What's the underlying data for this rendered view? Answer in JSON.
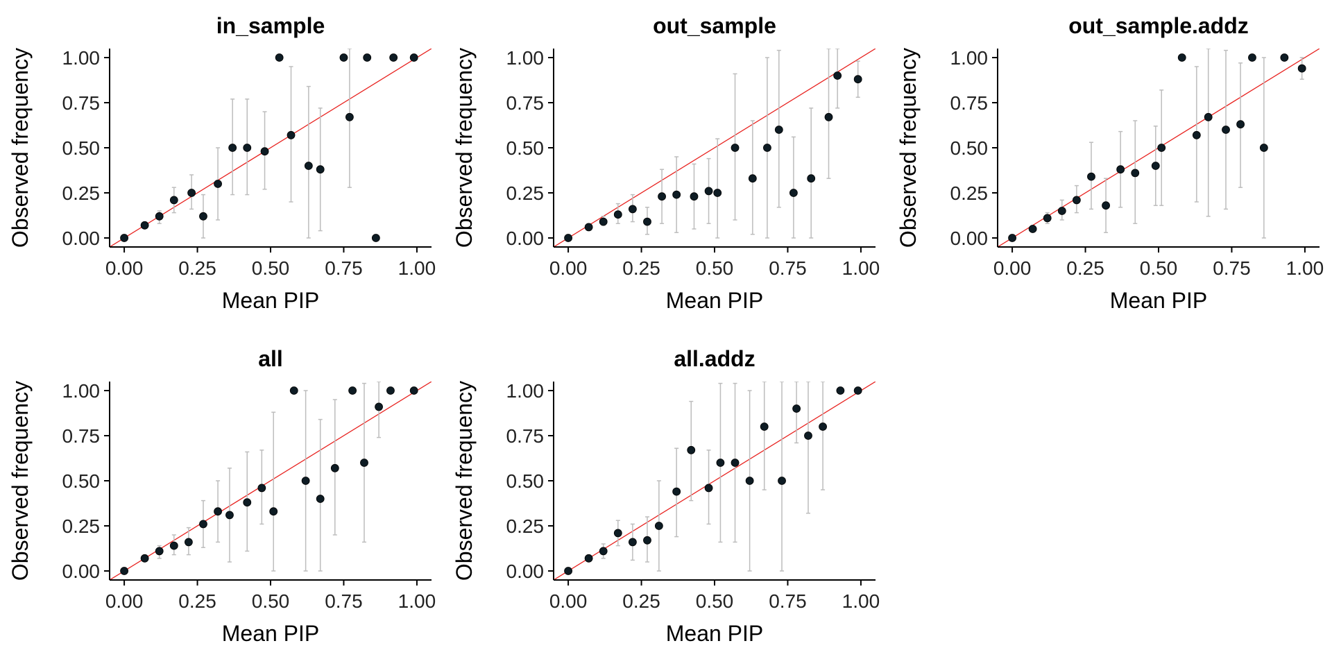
{
  "chart_data": [
    {
      "type": "scatter",
      "title": "in_sample",
      "xlabel": "Mean PIP",
      "ylabel": "Observed frequency",
      "xlim": [
        -0.05,
        1.05
      ],
      "ylim": [
        -0.05,
        1.05
      ],
      "xticks": [
        "0.00",
        "0.25",
        "0.50",
        "0.75",
        "1.00"
      ],
      "yticks": [
        "0.00",
        "0.25",
        "0.50",
        "0.75",
        "1.00"
      ],
      "reference_line": "y = x",
      "points": [
        {
          "x": 0.0,
          "y": 0.0,
          "lo": 0.0,
          "hi": 0.0
        },
        {
          "x": 0.07,
          "y": 0.07,
          "lo": 0.06,
          "hi": 0.08
        },
        {
          "x": 0.12,
          "y": 0.12,
          "lo": 0.08,
          "hi": 0.15
        },
        {
          "x": 0.17,
          "y": 0.21,
          "lo": 0.14,
          "hi": 0.28
        },
        {
          "x": 0.23,
          "y": 0.25,
          "lo": 0.16,
          "hi": 0.35
        },
        {
          "x": 0.27,
          "y": 0.12,
          "lo": 0.0,
          "hi": 0.24
        },
        {
          "x": 0.32,
          "y": 0.3,
          "lo": 0.1,
          "hi": 0.5
        },
        {
          "x": 0.37,
          "y": 0.5,
          "lo": 0.24,
          "hi": 0.77
        },
        {
          "x": 0.42,
          "y": 0.5,
          "lo": 0.24,
          "hi": 0.77
        },
        {
          "x": 0.48,
          "y": 0.48,
          "lo": 0.27,
          "hi": 0.7
        },
        {
          "x": 0.53,
          "y": 1.0,
          "lo": 1.0,
          "hi": 1.0
        },
        {
          "x": 0.57,
          "y": 0.57,
          "lo": 0.2,
          "hi": 0.95
        },
        {
          "x": 0.63,
          "y": 0.4,
          "lo": 0.0,
          "hi": 0.84
        },
        {
          "x": 0.67,
          "y": 0.38,
          "lo": 0.04,
          "hi": 0.72
        },
        {
          "x": 0.75,
          "y": 1.0,
          "lo": 1.0,
          "hi": 1.0
        },
        {
          "x": 0.77,
          "y": 0.67,
          "lo": 0.28,
          "hi": 1.05
        },
        {
          "x": 0.83,
          "y": 1.0,
          "lo": 1.0,
          "hi": 1.0
        },
        {
          "x": 0.86,
          "y": 0.0,
          "lo": 0.0,
          "hi": 0.0
        },
        {
          "x": 0.92,
          "y": 1.0,
          "lo": 1.0,
          "hi": 1.0
        },
        {
          "x": 0.99,
          "y": 1.0,
          "lo": 1.0,
          "hi": 1.0
        }
      ]
    },
    {
      "type": "scatter",
      "title": "out_sample",
      "xlabel": "Mean PIP",
      "ylabel": "Observed frequency",
      "xlim": [
        -0.05,
        1.05
      ],
      "ylim": [
        -0.05,
        1.05
      ],
      "xticks": [
        "0.00",
        "0.25",
        "0.50",
        "0.75",
        "1.00"
      ],
      "yticks": [
        "0.00",
        "0.25",
        "0.50",
        "0.75",
        "1.00"
      ],
      "reference_line": "y = x",
      "points": [
        {
          "x": 0.0,
          "y": 0.0,
          "lo": 0.0,
          "hi": 0.0
        },
        {
          "x": 0.07,
          "y": 0.06,
          "lo": 0.05,
          "hi": 0.07
        },
        {
          "x": 0.12,
          "y": 0.09,
          "lo": 0.07,
          "hi": 0.12
        },
        {
          "x": 0.17,
          "y": 0.13,
          "lo": 0.08,
          "hi": 0.19
        },
        {
          "x": 0.22,
          "y": 0.16,
          "lo": 0.09,
          "hi": 0.24
        },
        {
          "x": 0.27,
          "y": 0.09,
          "lo": 0.02,
          "hi": 0.17
        },
        {
          "x": 0.32,
          "y": 0.23,
          "lo": 0.08,
          "hi": 0.38
        },
        {
          "x": 0.37,
          "y": 0.24,
          "lo": 0.03,
          "hi": 0.45
        },
        {
          "x": 0.43,
          "y": 0.23,
          "lo": 0.05,
          "hi": 0.41
        },
        {
          "x": 0.48,
          "y": 0.26,
          "lo": 0.08,
          "hi": 0.44
        },
        {
          "x": 0.51,
          "y": 0.25,
          "lo": 0.0,
          "hi": 0.55
        },
        {
          "x": 0.57,
          "y": 0.5,
          "lo": 0.1,
          "hi": 0.91
        },
        {
          "x": 0.63,
          "y": 0.33,
          "lo": 0.02,
          "hi": 0.65
        },
        {
          "x": 0.68,
          "y": 0.5,
          "lo": 0.0,
          "hi": 1.0
        },
        {
          "x": 0.72,
          "y": 0.6,
          "lo": 0.17,
          "hi": 1.04
        },
        {
          "x": 0.77,
          "y": 0.25,
          "lo": 0.0,
          "hi": 0.56
        },
        {
          "x": 0.83,
          "y": 0.33,
          "lo": 0.0,
          "hi": 0.72
        },
        {
          "x": 0.89,
          "y": 0.67,
          "lo": 0.33,
          "hi": 1.05
        },
        {
          "x": 0.92,
          "y": 0.9,
          "lo": 0.72,
          "hi": 1.05
        },
        {
          "x": 0.99,
          "y": 0.88,
          "lo": 0.78,
          "hi": 0.98
        }
      ]
    },
    {
      "type": "scatter",
      "title": "out_sample.addz",
      "xlabel": "Mean PIP",
      "ylabel": "Observed frequency",
      "xlim": [
        -0.05,
        1.05
      ],
      "ylim": [
        -0.05,
        1.05
      ],
      "xticks": [
        "0.00",
        "0.25",
        "0.50",
        "0.75",
        "1.00"
      ],
      "yticks": [
        "0.00",
        "0.25",
        "0.50",
        "0.75",
        "1.00"
      ],
      "reference_line": "y = x",
      "points": [
        {
          "x": 0.0,
          "y": 0.0,
          "lo": 0.0,
          "hi": 0.0
        },
        {
          "x": 0.07,
          "y": 0.05,
          "lo": 0.04,
          "hi": 0.06
        },
        {
          "x": 0.12,
          "y": 0.11,
          "lo": 0.08,
          "hi": 0.14
        },
        {
          "x": 0.17,
          "y": 0.15,
          "lo": 0.1,
          "hi": 0.21
        },
        {
          "x": 0.22,
          "y": 0.21,
          "lo": 0.14,
          "hi": 0.29
        },
        {
          "x": 0.27,
          "y": 0.34,
          "lo": 0.16,
          "hi": 0.53
        },
        {
          "x": 0.32,
          "y": 0.18,
          "lo": 0.03,
          "hi": 0.33
        },
        {
          "x": 0.37,
          "y": 0.38,
          "lo": 0.17,
          "hi": 0.59
        },
        {
          "x": 0.42,
          "y": 0.36,
          "lo": 0.08,
          "hi": 0.65
        },
        {
          "x": 0.49,
          "y": 0.4,
          "lo": 0.18,
          "hi": 0.62
        },
        {
          "x": 0.51,
          "y": 0.5,
          "lo": 0.18,
          "hi": 0.82
        },
        {
          "x": 0.58,
          "y": 1.0,
          "lo": 1.0,
          "hi": 1.0
        },
        {
          "x": 0.63,
          "y": 0.57,
          "lo": 0.2,
          "hi": 0.95
        },
        {
          "x": 0.67,
          "y": 0.67,
          "lo": 0.12,
          "hi": 1.05
        },
        {
          "x": 0.73,
          "y": 0.6,
          "lo": 0.16,
          "hi": 1.04
        },
        {
          "x": 0.78,
          "y": 0.63,
          "lo": 0.28,
          "hi": 0.97
        },
        {
          "x": 0.82,
          "y": 1.0,
          "lo": 1.0,
          "hi": 1.0
        },
        {
          "x": 0.86,
          "y": 0.5,
          "lo": 0.0,
          "hi": 1.0
        },
        {
          "x": 0.93,
          "y": 1.0,
          "lo": 1.0,
          "hi": 1.0
        },
        {
          "x": 0.99,
          "y": 0.94,
          "lo": 0.88,
          "hi": 1.0
        }
      ]
    },
    {
      "type": "scatter",
      "title": "all",
      "xlabel": "Mean PIP",
      "ylabel": "Observed frequency",
      "xlim": [
        -0.05,
        1.05
      ],
      "ylim": [
        -0.05,
        1.05
      ],
      "xticks": [
        "0.00",
        "0.25",
        "0.50",
        "0.75",
        "1.00"
      ],
      "yticks": [
        "0.00",
        "0.25",
        "0.50",
        "0.75",
        "1.00"
      ],
      "reference_line": "y = x",
      "points": [
        {
          "x": 0.0,
          "y": 0.0,
          "lo": 0.0,
          "hi": 0.0
        },
        {
          "x": 0.07,
          "y": 0.07,
          "lo": 0.06,
          "hi": 0.08
        },
        {
          "x": 0.12,
          "y": 0.11,
          "lo": 0.07,
          "hi": 0.14
        },
        {
          "x": 0.17,
          "y": 0.14,
          "lo": 0.09,
          "hi": 0.2
        },
        {
          "x": 0.22,
          "y": 0.16,
          "lo": 0.09,
          "hi": 0.24
        },
        {
          "x": 0.27,
          "y": 0.26,
          "lo": 0.13,
          "hi": 0.39
        },
        {
          "x": 0.32,
          "y": 0.33,
          "lo": 0.16,
          "hi": 0.5
        },
        {
          "x": 0.36,
          "y": 0.31,
          "lo": 0.05,
          "hi": 0.57
        },
        {
          "x": 0.42,
          "y": 0.38,
          "lo": 0.11,
          "hi": 0.66
        },
        {
          "x": 0.47,
          "y": 0.46,
          "lo": 0.26,
          "hi": 0.67
        },
        {
          "x": 0.51,
          "y": 0.33,
          "lo": 0.0,
          "hi": 0.88
        },
        {
          "x": 0.58,
          "y": 1.0,
          "lo": 1.0,
          "hi": 1.0
        },
        {
          "x": 0.62,
          "y": 0.5,
          "lo": 0.0,
          "hi": 1.0
        },
        {
          "x": 0.67,
          "y": 0.4,
          "lo": 0.0,
          "hi": 0.84
        },
        {
          "x": 0.72,
          "y": 0.57,
          "lo": 0.2,
          "hi": 0.95
        },
        {
          "x": 0.78,
          "y": 1.0,
          "lo": 1.0,
          "hi": 1.0
        },
        {
          "x": 0.82,
          "y": 0.6,
          "lo": 0.16,
          "hi": 1.04
        },
        {
          "x": 0.87,
          "y": 0.91,
          "lo": 0.74,
          "hi": 1.05
        },
        {
          "x": 0.91,
          "y": 1.0,
          "lo": 1.0,
          "hi": 1.0
        },
        {
          "x": 0.99,
          "y": 1.0,
          "lo": 1.0,
          "hi": 1.0
        }
      ]
    },
    {
      "type": "scatter",
      "title": "all.addz",
      "xlabel": "Mean PIP",
      "ylabel": "Observed frequency",
      "xlim": [
        -0.05,
        1.05
      ],
      "ylim": [
        -0.05,
        1.05
      ],
      "xticks": [
        "0.00",
        "0.25",
        "0.50",
        "0.75",
        "1.00"
      ],
      "yticks": [
        "0.00",
        "0.25",
        "0.50",
        "0.75",
        "1.00"
      ],
      "reference_line": "y = x",
      "points": [
        {
          "x": 0.0,
          "y": 0.0,
          "lo": 0.0,
          "hi": 0.0
        },
        {
          "x": 0.07,
          "y": 0.07,
          "lo": 0.06,
          "hi": 0.08
        },
        {
          "x": 0.12,
          "y": 0.11,
          "lo": 0.07,
          "hi": 0.15
        },
        {
          "x": 0.17,
          "y": 0.21,
          "lo": 0.14,
          "hi": 0.28
        },
        {
          "x": 0.22,
          "y": 0.16,
          "lo": 0.06,
          "hi": 0.26
        },
        {
          "x": 0.27,
          "y": 0.17,
          "lo": 0.05,
          "hi": 0.3
        },
        {
          "x": 0.31,
          "y": 0.25,
          "lo": 0.0,
          "hi": 0.5
        },
        {
          "x": 0.37,
          "y": 0.44,
          "lo": 0.19,
          "hi": 0.68
        },
        {
          "x": 0.42,
          "y": 0.67,
          "lo": 0.39,
          "hi": 0.94
        },
        {
          "x": 0.48,
          "y": 0.46,
          "lo": 0.26,
          "hi": 0.67
        },
        {
          "x": 0.52,
          "y": 0.6,
          "lo": 0.16,
          "hi": 1.04
        },
        {
          "x": 0.57,
          "y": 0.6,
          "lo": 0.16,
          "hi": 1.04
        },
        {
          "x": 0.62,
          "y": 0.5,
          "lo": 0.0,
          "hi": 1.0
        },
        {
          "x": 0.67,
          "y": 0.8,
          "lo": 0.45,
          "hi": 1.05
        },
        {
          "x": 0.73,
          "y": 0.5,
          "lo": 0.0,
          "hi": 1.05
        },
        {
          "x": 0.78,
          "y": 0.9,
          "lo": 0.71,
          "hi": 1.05
        },
        {
          "x": 0.82,
          "y": 0.75,
          "lo": 0.32,
          "hi": 1.05
        },
        {
          "x": 0.87,
          "y": 0.8,
          "lo": 0.45,
          "hi": 1.05
        },
        {
          "x": 0.93,
          "y": 1.0,
          "lo": 1.0,
          "hi": 1.0
        },
        {
          "x": 0.99,
          "y": 1.0,
          "lo": 1.0,
          "hi": 1.0
        }
      ]
    }
  ],
  "colors": {
    "point": "#0e1c24",
    "error_bar": "#bdbdbd",
    "reference_line": "#e8221f",
    "axis": "#000000",
    "background": "#ffffff"
  }
}
